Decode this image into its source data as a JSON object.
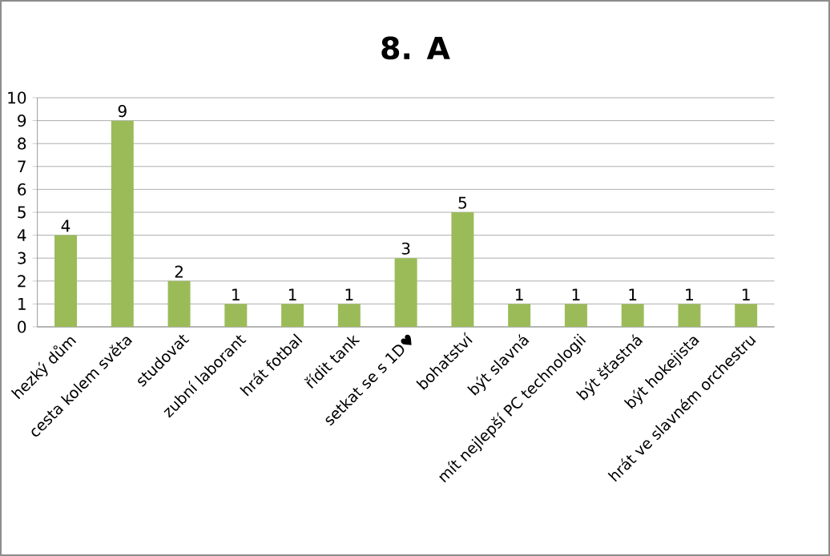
{
  "chart_data": {
    "type": "bar",
    "title": "**8. A**",
    "categories": [
      "hezký dům",
      "cesta kolem světa",
      "studovat",
      "zubní laborant",
      "hrát fotbal",
      "řídit tank",
      "setkat se s 1D♥",
      "bohatství",
      "být slavná",
      "mít nejlepší PC technologii",
      "být šťastná",
      "být hokejista",
      "hrát ve slavném orchestru"
    ],
    "values": [
      4,
      9,
      2,
      1,
      1,
      1,
      3,
      5,
      1,
      1,
      1,
      1,
      1
    ],
    "color": "#9bbb59",
    "ylim": [
      0,
      10
    ],
    "yticks": [
      0,
      1,
      2,
      3,
      4,
      5,
      6,
      7,
      8,
      9,
      10
    ],
    "grid": "y",
    "data_labels": true
  }
}
